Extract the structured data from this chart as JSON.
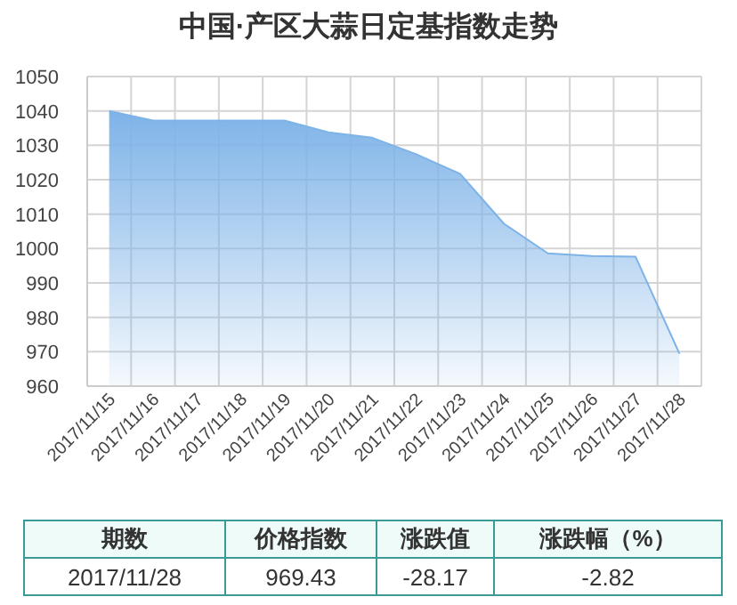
{
  "chart_data": {
    "type": "area",
    "title": "中国·产区大蒜日定基指数走势",
    "categories": [
      "2017/11/15",
      "2017/11/16",
      "2017/11/17",
      "2017/11/18",
      "2017/11/19",
      "2017/11/20",
      "2017/11/21",
      "2017/11/22",
      "2017/11/23",
      "2017/11/24",
      "2017/11/25",
      "2017/11/26",
      "2017/11/27",
      "2017/11/28"
    ],
    "series": [
      {
        "color": "#7eb3e8",
        "values": [
          1040,
          1037.2,
          1037.2,
          1037.2,
          1037.2,
          1033.8,
          1032.2,
          1027.4,
          1021.7,
          1007.2,
          998.6,
          997.8,
          997.6,
          969.43
        ]
      }
    ],
    "ylim": [
      960,
      1050
    ],
    "yticks": [
      960,
      970,
      980,
      990,
      1000,
      1010,
      1020,
      1030,
      1040,
      1050
    ],
    "grid": true,
    "annotations": [
      "期数",
      "价格指数",
      "涨跌值",
      "涨跌幅（%）",
      "2017/11/28",
      "969.43",
      "-28.17",
      "-2.82"
    ]
  }
}
